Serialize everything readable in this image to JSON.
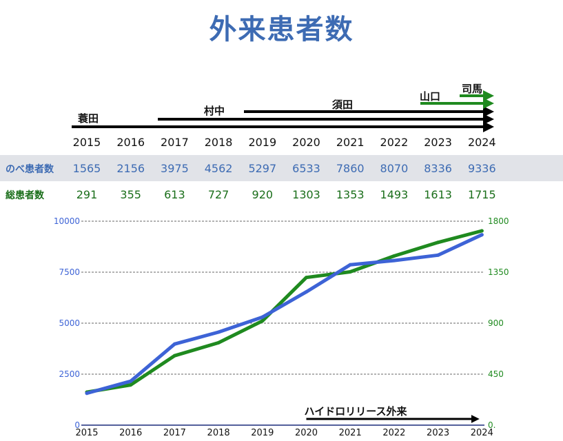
{
  "title": "外来患者数",
  "colors": {
    "title": "#3d6bb3",
    "blue": "#3d63d6",
    "green": "#1f8a1f",
    "black": "#000000"
  },
  "timeline": {
    "staff": [
      {
        "name": "蓑田",
        "from": 2015,
        "to": 2024,
        "color": "#000000"
      },
      {
        "name": "村中",
        "from": 2017,
        "to": 2024,
        "color": "#000000"
      },
      {
        "name": "須田",
        "from": 2019,
        "to": 2024,
        "color": "#000000"
      },
      {
        "name": "山口",
        "from": 2023,
        "to": 2024,
        "color": "#1f8a1f"
      },
      {
        "name": "司馬",
        "from": 2024,
        "to": 2024,
        "color": "#1f8a1f"
      }
    ]
  },
  "table": {
    "years": [
      "2015",
      "2016",
      "2017",
      "2018",
      "2019",
      "2020",
      "2021",
      "2022",
      "2023",
      "2024"
    ],
    "rows": [
      {
        "label": "のべ患者数",
        "values": [
          "1565",
          "2156",
          "3975",
          "4562",
          "5297",
          "6533",
          "7860",
          "8070",
          "8336",
          "9336"
        ]
      },
      {
        "label": "総患者数",
        "values": [
          "291",
          "355",
          "613",
          "727",
          "920",
          "1303",
          "1353",
          "1493",
          "1613",
          "1715"
        ]
      }
    ]
  },
  "chart_data": {
    "type": "line",
    "x": [
      2015,
      2016,
      2017,
      2018,
      2019,
      2020,
      2021,
      2022,
      2023,
      2024
    ],
    "series": [
      {
        "name": "のべ患者数",
        "values": [
          1565,
          2156,
          3975,
          4562,
          5297,
          6533,
          7860,
          8070,
          8336,
          9336
        ],
        "axis": "left",
        "color": "#3d63d6"
      },
      {
        "name": "総患者数",
        "values": [
          291,
          355,
          613,
          727,
          920,
          1303,
          1353,
          1493,
          1613,
          1715
        ],
        "axis": "right",
        "color": "#1f8a1f"
      }
    ],
    "ylim_left": [
      0,
      10000
    ],
    "ylim_right": [
      0,
      1800
    ],
    "yticks_left": [
      "0",
      "2500",
      "5000",
      "7500",
      "10000"
    ],
    "yticks_right": [
      "0.",
      "450",
      "900",
      "1350",
      "1800"
    ],
    "xticks": [
      "2015",
      "2016",
      "2017",
      "2018",
      "2019",
      "2020",
      "2021",
      "2022",
      "2023",
      "2024"
    ],
    "grid": true,
    "annotation": {
      "text": "ハイドロリリース外来",
      "from": 2020,
      "to": 2024
    }
  }
}
